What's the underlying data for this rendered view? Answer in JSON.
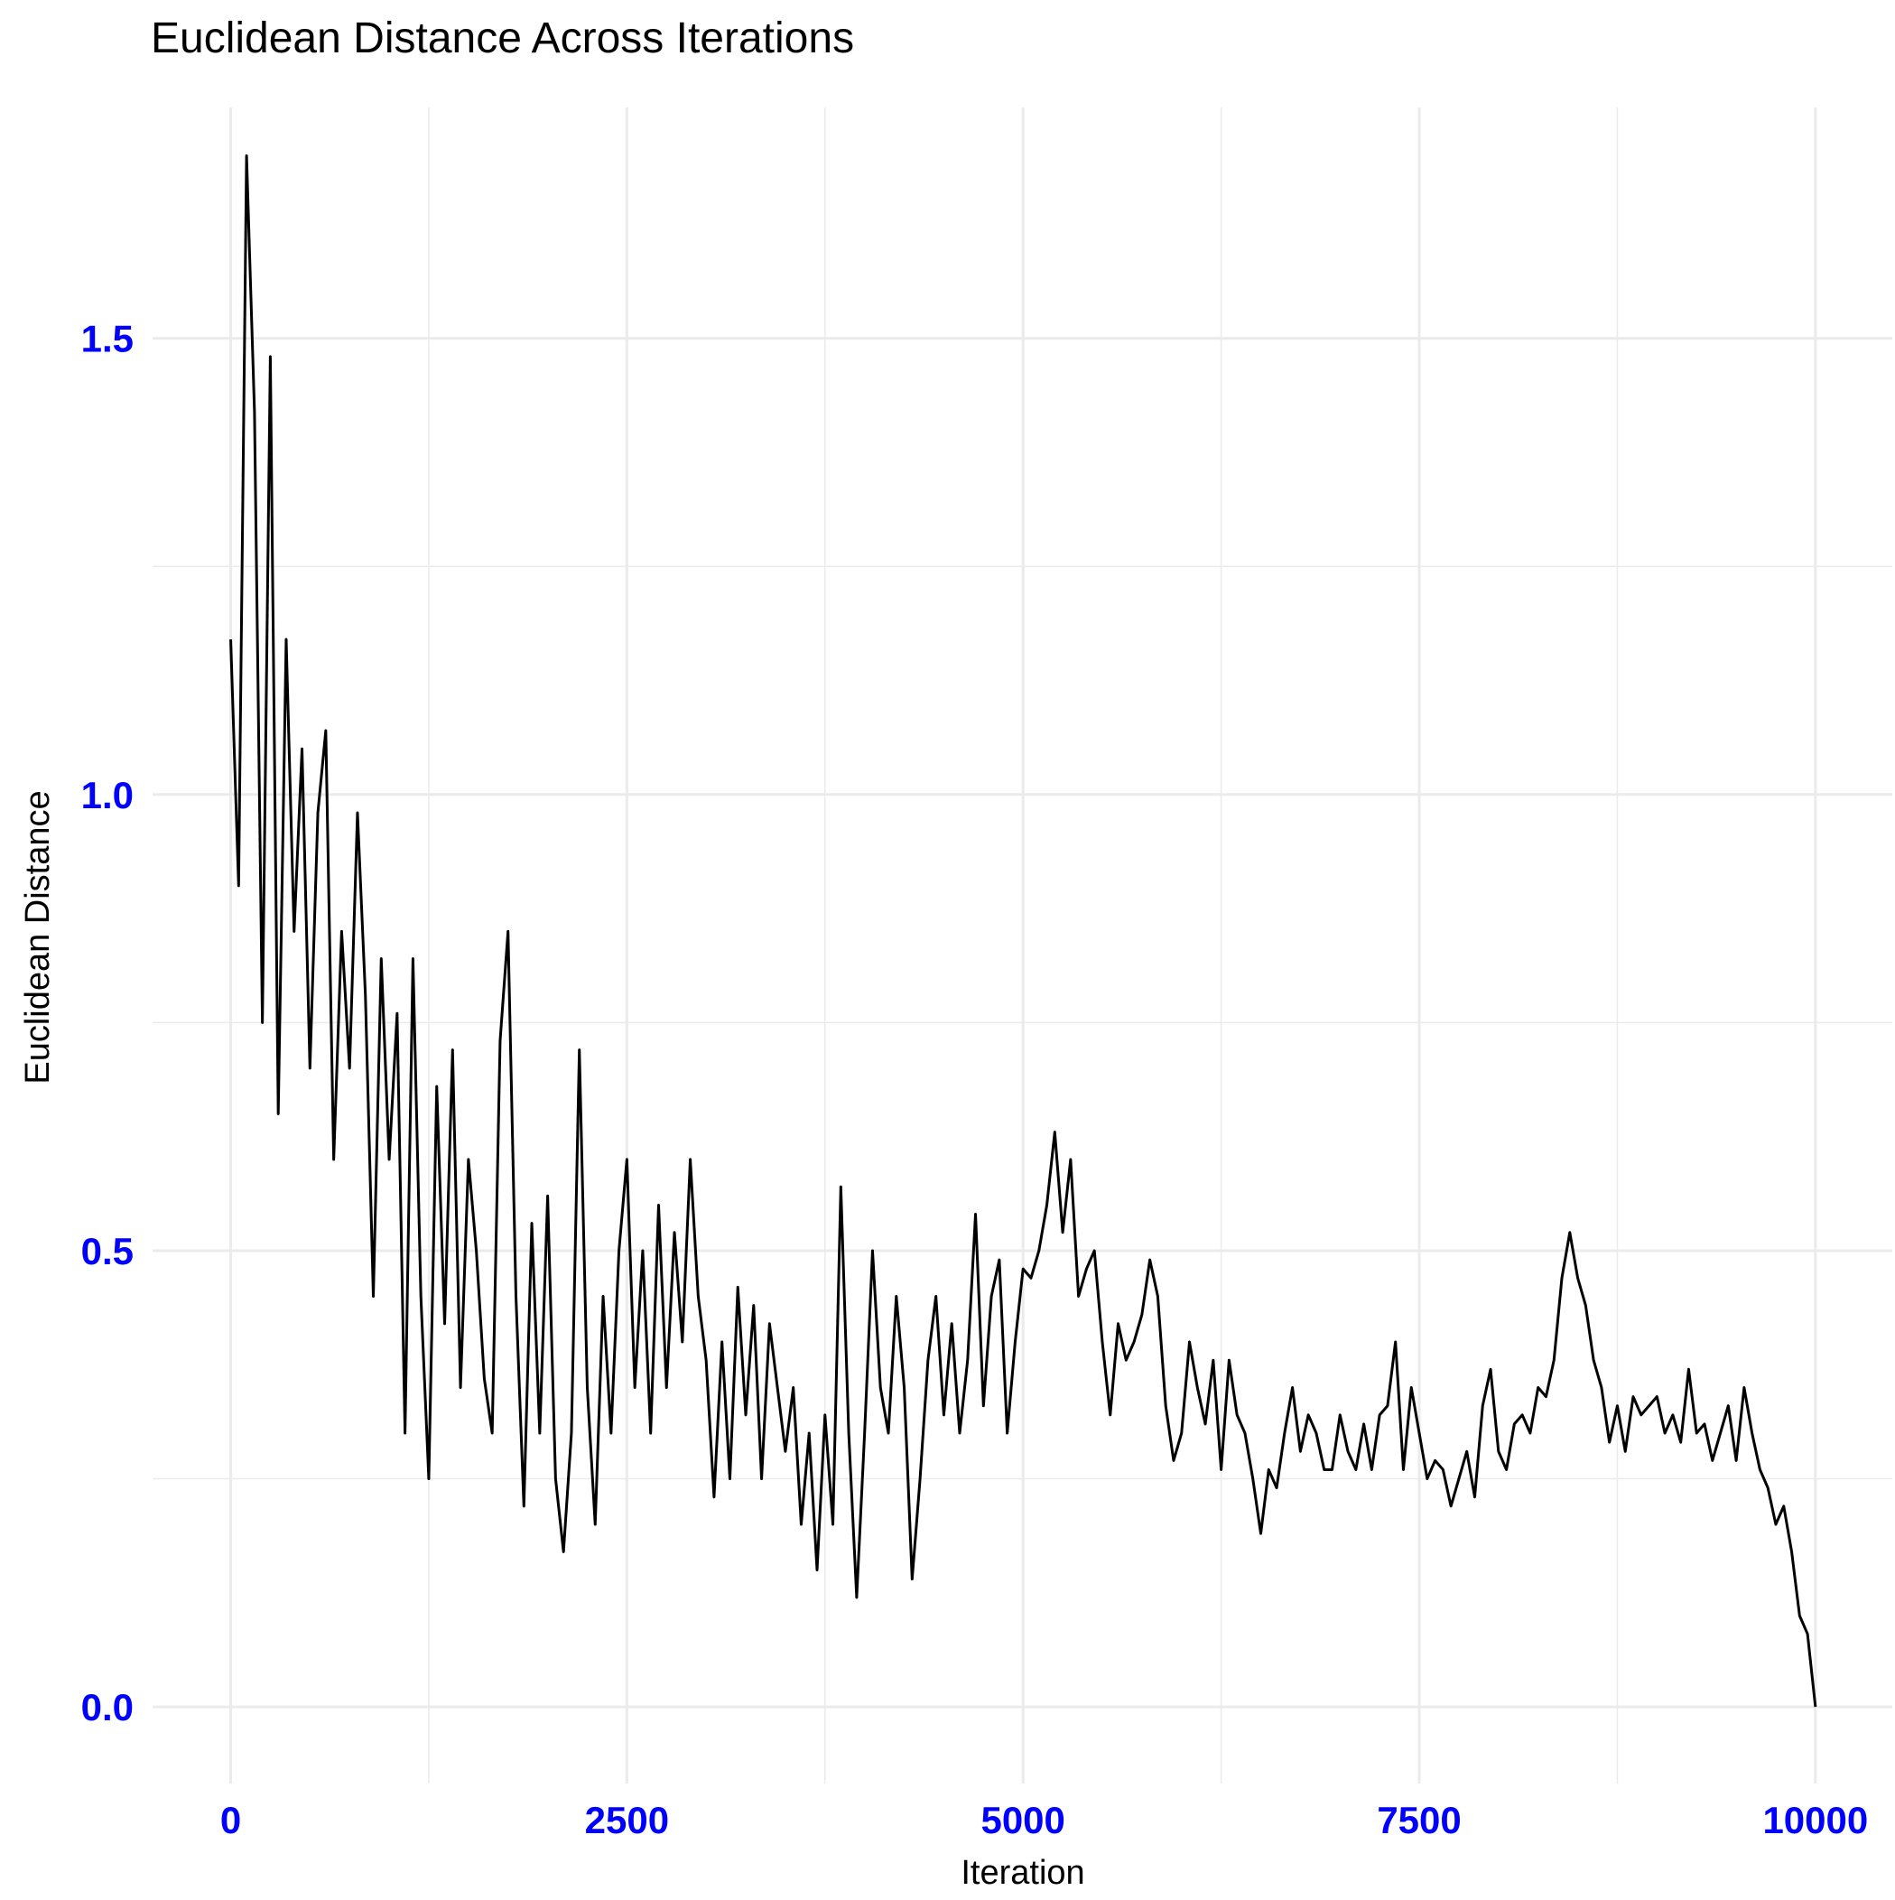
{
  "chart_data": {
    "type": "line",
    "title": "Euclidean Distance Across Iterations",
    "x_label": "Iteration",
    "y_label": "Euclidean Distance",
    "xlim": [
      -493,
      10485
    ],
    "ylim": [
      -0.084,
      1.753
    ],
    "xticks": [
      0,
      2500,
      5000,
      7500,
      10000
    ],
    "yticks": [
      {
        "value": 0,
        "label": "0.0"
      },
      0.5,
      {
        "value": 1,
        "label": "1.0"
      },
      1.5
    ],
    "grid": true,
    "series": [
      {
        "color": "#000000",
        "x": [
          0,
          50,
          100,
          150,
          200,
          250,
          300,
          350,
          400,
          450,
          500,
          550,
          600,
          650,
          700,
          750,
          800,
          850,
          900,
          950,
          1000,
          1050,
          1100,
          1150,
          1200,
          1250,
          1300,
          1350,
          1400,
          1450,
          1500,
          1550,
          1600,
          1650,
          1700,
          1750,
          1800,
          1850,
          1900,
          1950,
          2000,
          2050,
          2100,
          2150,
          2200,
          2250,
          2300,
          2350,
          2400,
          2450,
          2500,
          2550,
          2600,
          2650,
          2700,
          2750,
          2800,
          2850,
          2900,
          2950,
          3000,
          3050,
          3100,
          3150,
          3200,
          3250,
          3300,
          3350,
          3400,
          3450,
          3500,
          3550,
          3600,
          3650,
          3700,
          3750,
          3800,
          3850,
          3900,
          3950,
          4000,
          4050,
          4100,
          4150,
          4200,
          4250,
          4300,
          4350,
          4400,
          4450,
          4500,
          4550,
          4600,
          4650,
          4700,
          4750,
          4800,
          4850,
          4900,
          4950,
          5000,
          5050,
          5100,
          5150,
          5200,
          5250,
          5300,
          5350,
          5400,
          5450,
          5500,
          5550,
          5600,
          5650,
          5700,
          5750,
          5800,
          5850,
          5900,
          5950,
          6000,
          6050,
          6100,
          6150,
          6200,
          6250,
          6300,
          6350,
          6400,
          6450,
          6500,
          6550,
          6600,
          6650,
          6700,
          6750,
          6800,
          6850,
          6900,
          6950,
          7000,
          7050,
          7100,
          7150,
          7200,
          7250,
          7300,
          7350,
          7400,
          7450,
          7500,
          7550,
          7600,
          7650,
          7700,
          7750,
          7800,
          7850,
          7900,
          7950,
          8000,
          8050,
          8100,
          8150,
          8200,
          8250,
          8300,
          8350,
          8400,
          8450,
          8500,
          8550,
          8600,
          8650,
          8700,
          8750,
          8800,
          8850,
          8900,
          8950,
          9000,
          9050,
          9100,
          9150,
          9200,
          9250,
          9300,
          9350,
          9400,
          9450,
          9500,
          9550,
          9600,
          9650,
          9700,
          9750,
          9800,
          9850,
          9900,
          9950,
          10000
        ],
        "values": [
          1.17,
          0.9,
          1.7,
          1.42,
          0.75,
          1.48,
          0.65,
          1.17,
          0.85,
          1.05,
          0.7,
          0.98,
          1.07,
          0.6,
          0.85,
          0.7,
          0.98,
          0.78,
          0.45,
          0.82,
          0.6,
          0.76,
          0.3,
          0.82,
          0.45,
          0.25,
          0.68,
          0.42,
          0.72,
          0.35,
          0.6,
          0.5,
          0.36,
          0.3,
          0.73,
          0.85,
          0.45,
          0.22,
          0.53,
          0.3,
          0.56,
          0.25,
          0.17,
          0.3,
          0.72,
          0.35,
          0.2,
          0.45,
          0.3,
          0.5,
          0.6,
          0.35,
          0.5,
          0.3,
          0.55,
          0.35,
          0.52,
          0.4,
          0.6,
          0.45,
          0.38,
          0.23,
          0.4,
          0.25,
          0.46,
          0.32,
          0.44,
          0.25,
          0.42,
          0.35,
          0.28,
          0.35,
          0.2,
          0.3,
          0.15,
          0.32,
          0.2,
          0.57,
          0.3,
          0.12,
          0.3,
          0.5,
          0.35,
          0.3,
          0.45,
          0.35,
          0.14,
          0.25,
          0.38,
          0.45,
          0.32,
          0.42,
          0.3,
          0.38,
          0.54,
          0.33,
          0.45,
          0.49,
          0.3,
          0.4,
          0.48,
          0.47,
          0.5,
          0.55,
          0.63,
          0.52,
          0.6,
          0.45,
          0.48,
          0.5,
          0.4,
          0.32,
          0.42,
          0.38,
          0.4,
          0.43,
          0.49,
          0.45,
          0.33,
          0.27,
          0.3,
          0.4,
          0.35,
          0.31,
          0.38,
          0.26,
          0.38,
          0.32,
          0.3,
          0.25,
          0.19,
          0.26,
          0.24,
          0.3,
          0.35,
          0.28,
          0.32,
          0.3,
          0.26,
          0.26,
          0.32,
          0.28,
          0.26,
          0.31,
          0.26,
          0.32,
          0.33,
          0.4,
          0.26,
          0.35,
          0.3,
          0.25,
          0.27,
          0.26,
          0.22,
          0.25,
          0.28,
          0.23,
          0.33,
          0.37,
          0.28,
          0.26,
          0.31,
          0.32,
          0.3,
          0.35,
          0.34,
          0.38,
          0.47,
          0.52,
          0.47,
          0.44,
          0.38,
          0.35,
          0.29,
          0.33,
          0.28,
          0.34,
          0.32,
          0.33,
          0.34,
          0.3,
          0.32,
          0.29,
          0.37,
          0.3,
          0.31,
          0.27,
          0.3,
          0.33,
          0.27,
          0.35,
          0.3,
          0.26,
          0.24,
          0.2,
          0.22,
          0.17,
          0.1,
          0.08,
          0.0
        ]
      }
    ]
  }
}
